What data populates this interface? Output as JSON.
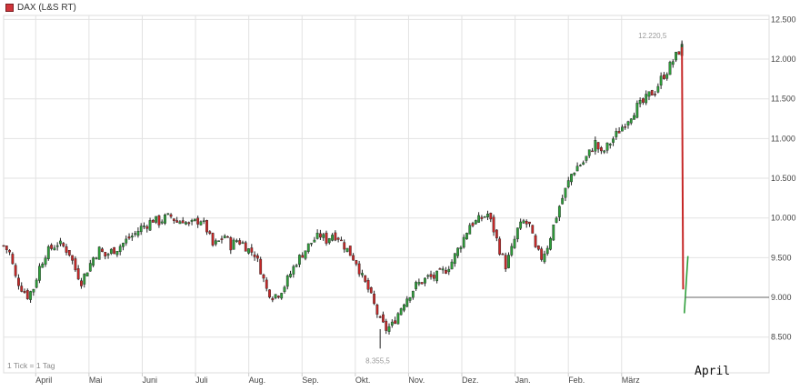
{
  "legend": {
    "label": "DAX (L&S RT)",
    "color": "#d0343a"
  },
  "tick_note": "1 Tick = 1 Tag",
  "current_month_label": "April",
  "colors": {
    "up": "#2e9e3a",
    "down": "#c62828",
    "wick": "#222222",
    "grid": "#e2e2e2",
    "axis": "#cccccc"
  },
  "chart_data": {
    "type": "candlestick",
    "title": "",
    "xlabel": "",
    "ylabel": "",
    "months": [
      "April",
      "Mai",
      "Juni",
      "Juli",
      "Aug.",
      "Sep.",
      "Okt.",
      "Nov.",
      "Dez.",
      "Jan.",
      "Feb.",
      "März"
    ],
    "ylim": [
      8050,
      12550
    ],
    "yticks": [
      8500,
      9000,
      9500,
      10000,
      10500,
      11000,
      11500,
      12000,
      12500
    ],
    "ytick_labels": [
      "8.500",
      "9.000",
      "9.500",
      "10.000",
      "10.500",
      "11.000",
      "11.500",
      "12.000",
      "12.500"
    ],
    "grid": true,
    "legend_position": "top-left",
    "annotations": [
      {
        "text": "12.220,5",
        "value": 12220.5
      },
      {
        "text": "8.355,5",
        "value": 8355.5
      }
    ],
    "reference_line": 9000,
    "close_path": [
      [
        0,
        9650
      ],
      [
        2,
        9560
      ],
      [
        4,
        9250
      ],
      [
        6,
        9120
      ],
      [
        8,
        9020
      ],
      [
        10,
        9120
      ],
      [
        12,
        9380
      ],
      [
        14,
        9550
      ],
      [
        16,
        9620
      ],
      [
        18,
        9680
      ],
      [
        20,
        9640
      ],
      [
        22,
        9560
      ],
      [
        24,
        9350
      ],
      [
        26,
        9200
      ],
      [
        28,
        9350
      ],
      [
        30,
        9500
      ],
      [
        32,
        9600
      ],
      [
        34,
        9520
      ],
      [
        36,
        9580
      ],
      [
        38,
        9620
      ],
      [
        40,
        9680
      ],
      [
        42,
        9750
      ],
      [
        44,
        9800
      ],
      [
        46,
        9880
      ],
      [
        48,
        9920
      ],
      [
        50,
        9980
      ],
      [
        52,
        9950
      ],
      [
        54,
        10000
      ],
      [
        56,
        10020
      ],
      [
        58,
        9950
      ],
      [
        60,
        9980
      ],
      [
        62,
        9900
      ],
      [
        64,
        9950
      ],
      [
        66,
        9980
      ],
      [
        68,
        9850
      ],
      [
        70,
        9650
      ],
      [
        72,
        9700
      ],
      [
        74,
        9780
      ],
      [
        76,
        9650
      ],
      [
        78,
        9720
      ],
      [
        80,
        9680
      ],
      [
        82,
        9600
      ],
      [
        84,
        9550
      ],
      [
        86,
        9350
      ],
      [
        88,
        9100
      ],
      [
        90,
        9020
      ],
      [
        92,
        9050
      ],
      [
        94,
        9150
      ],
      [
        96,
        9300
      ],
      [
        98,
        9450
      ],
      [
        100,
        9550
      ],
      [
        102,
        9650
      ],
      [
        104,
        9730
      ],
      [
        106,
        9780
      ],
      [
        108,
        9720
      ],
      [
        110,
        9800
      ],
      [
        112,
        9760
      ],
      [
        114,
        9650
      ],
      [
        116,
        9550
      ],
      [
        118,
        9450
      ],
      [
        120,
        9250
      ],
      [
        122,
        9100
      ],
      [
        124,
        8900
      ],
      [
        126,
        8700
      ],
      [
        128,
        8600
      ],
      [
        130,
        8650
      ],
      [
        132,
        8800
      ],
      [
        134,
        8950
      ],
      [
        136,
        9050
      ],
      [
        138,
        9150
      ],
      [
        140,
        9200
      ],
      [
        142,
        9250
      ],
      [
        144,
        9250
      ],
      [
        146,
        9300
      ],
      [
        148,
        9350
      ],
      [
        150,
        9450
      ],
      [
        152,
        9600
      ],
      [
        154,
        9750
      ],
      [
        156,
        9920
      ],
      [
        158,
        9950
      ],
      [
        160,
        10000
      ],
      [
        162,
        10050
      ],
      [
        164,
        9850
      ],
      [
        166,
        9600
      ],
      [
        168,
        9400
      ],
      [
        170,
        9600
      ],
      [
        172,
        9850
      ],
      [
        174,
        9950
      ],
      [
        176,
        9900
      ],
      [
        178,
        9600
      ],
      [
        180,
        9500
      ],
      [
        182,
        9650
      ],
      [
        184,
        9900
      ],
      [
        186,
        10150
      ],
      [
        188,
        10350
      ],
      [
        190,
        10550
      ],
      [
        192,
        10650
      ],
      [
        194,
        10700
      ],
      [
        196,
        10820
      ],
      [
        198,
        10950
      ],
      [
        200,
        10800
      ],
      [
        202,
        10900
      ],
      [
        204,
        11000
      ],
      [
        206,
        11100
      ],
      [
        208,
        11200
      ],
      [
        210,
        11300
      ],
      [
        212,
        11400
      ],
      [
        214,
        11450
      ],
      [
        216,
        11550
      ],
      [
        218,
        11600
      ],
      [
        220,
        11750
      ],
      [
        222,
        11850
      ],
      [
        224,
        11980
      ],
      [
        226,
        12100
      ],
      [
        227,
        12150
      ]
    ],
    "drop_path": [
      [
        227,
        12150
      ],
      [
        227.4,
        9100
      ],
      [
        227.8,
        9000
      ],
      [
        229,
        9520
      ]
    ]
  }
}
